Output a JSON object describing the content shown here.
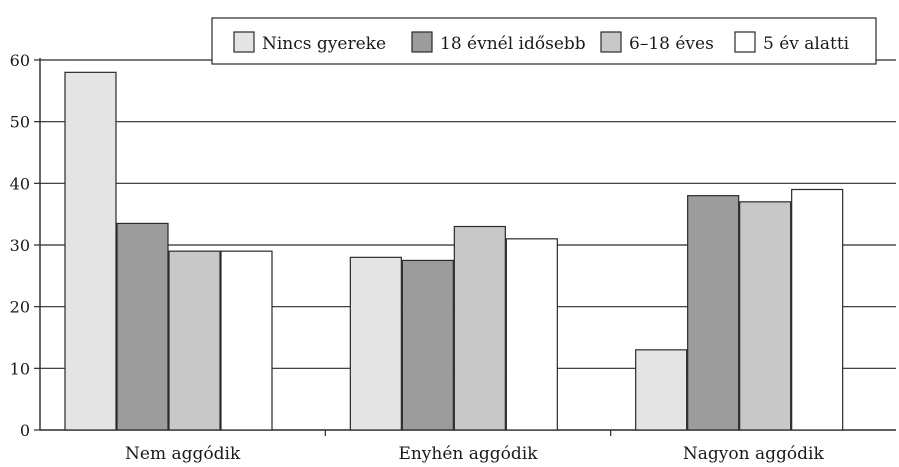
{
  "chart_data": {
    "type": "bar",
    "title": "",
    "xlabel": "",
    "ylabel": "",
    "ylim": [
      0,
      60
    ],
    "yticks": [
      0,
      10,
      20,
      30,
      40,
      50,
      60
    ],
    "grid": true,
    "legend_position": "top-right",
    "categories": [
      "Nem aggódik",
      "Enyhén aggódik",
      "Nagyon aggódik"
    ],
    "series": [
      {
        "name": "Nincs gyereke",
        "color": "#e4e4e4",
        "values": [
          58,
          28,
          13
        ]
      },
      {
        "name": "18 évnél idősebb",
        "color": "#9c9c9c",
        "values": [
          33.5,
          27.5,
          38
        ]
      },
      {
        "name": "6–18 éves",
        "color": "#c8c8c8",
        "values": [
          29,
          33,
          37
        ]
      },
      {
        "name": "5 év alatti",
        "color": "#ffffff",
        "values": [
          29,
          31,
          39
        ]
      }
    ]
  }
}
